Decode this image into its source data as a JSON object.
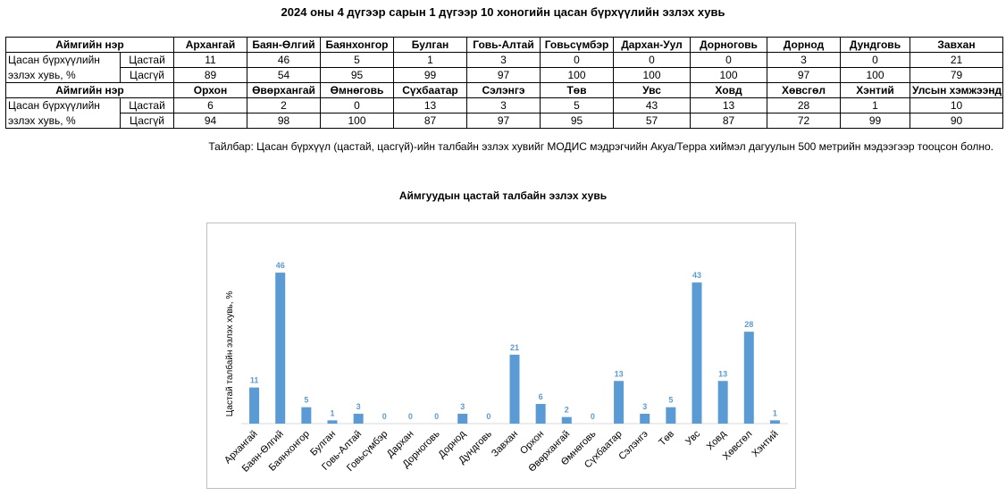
{
  "title": "2024 оны 4 дүгээр сарын 1 дүгээр 10 хоногийн цасан бүрхүүлийн эзлэх хувь",
  "table": {
    "header_label": "Аймгийн нэр",
    "row_label_line1": "Цасан бүрхүүлийн",
    "row_label_line2": "эзлэх хувь, %",
    "sub_labels": [
      "Цастай",
      "Цасгүй"
    ],
    "blocks": [
      {
        "names": [
          "Архангай",
          "Баян-Өлгий",
          "Баянхонгор",
          "Булган",
          "Говь-Алтай",
          "Говьсүмбэр",
          "Дархан-Уул",
          "Дорноговь",
          "Дорнод",
          "Дундговь",
          "Завхан"
        ],
        "snow": [
          "11",
          "46",
          "5",
          "1",
          "3",
          "0",
          "0",
          "0",
          "3",
          "0",
          "21"
        ],
        "nosnow": [
          "89",
          "54",
          "95",
          "99",
          "97",
          "100",
          "100",
          "100",
          "97",
          "100",
          "79"
        ]
      },
      {
        "names": [
          "Орхон",
          "Өвөрхангай",
          "Өмнөговь",
          "Сүхбаатар",
          "Сэлэнгэ",
          "Төв",
          "Увс",
          "Ховд",
          "Хөвсгөл",
          "Хэнтий",
          "Улсын хэмжээнд"
        ],
        "snow": [
          "6",
          "2",
          "0",
          "13",
          "3",
          "5",
          "43",
          "13",
          "28",
          "1",
          "10"
        ],
        "nosnow": [
          "94",
          "98",
          "100",
          "87",
          "97",
          "95",
          "57",
          "87",
          "72",
          "99",
          "90"
        ]
      }
    ]
  },
  "note": "Тайлбар: Цасан бүрхүүл (цастай, цасгүй)-ийн талбайн эзлэх хувийг МОДИС мэдрэгчийн Акуа/Терра хиймэл дагуулын 500 метрийн мэдээгээр тооцсон болно.",
  "chart_data": {
    "type": "bar",
    "title": "Аймгуудын цастай талбайн эзлэх хувь",
    "ylabel": "Цастай талбайн эзлэх хувь, %",
    "xlabel": "",
    "categories": [
      "Архангай",
      "Баян-Өлгий",
      "Баянхонгор",
      "Булган",
      "Говь-Алтай",
      "Говьсүмбэр",
      "Дархан",
      "Дорноговь",
      "Дорнод",
      "Дундговь",
      "Завхан",
      "Орхон",
      "Өвөрхангай",
      "Өмнөговь",
      "Сүхбаатар",
      "Сэлэнгэ",
      "Төв",
      "Увс",
      "Ховд",
      "Хөвсгөл",
      "Хэнтий"
    ],
    "values": [
      11,
      46,
      5,
      1,
      3,
      0,
      0,
      0,
      3,
      0,
      21,
      6,
      2,
      0,
      13,
      3,
      5,
      43,
      13,
      28,
      1
    ],
    "ylim": [
      0,
      50
    ],
    "grid": false,
    "legend": "none",
    "bar_color": "#5b9bd5",
    "label_color": "#5b9bd5"
  }
}
